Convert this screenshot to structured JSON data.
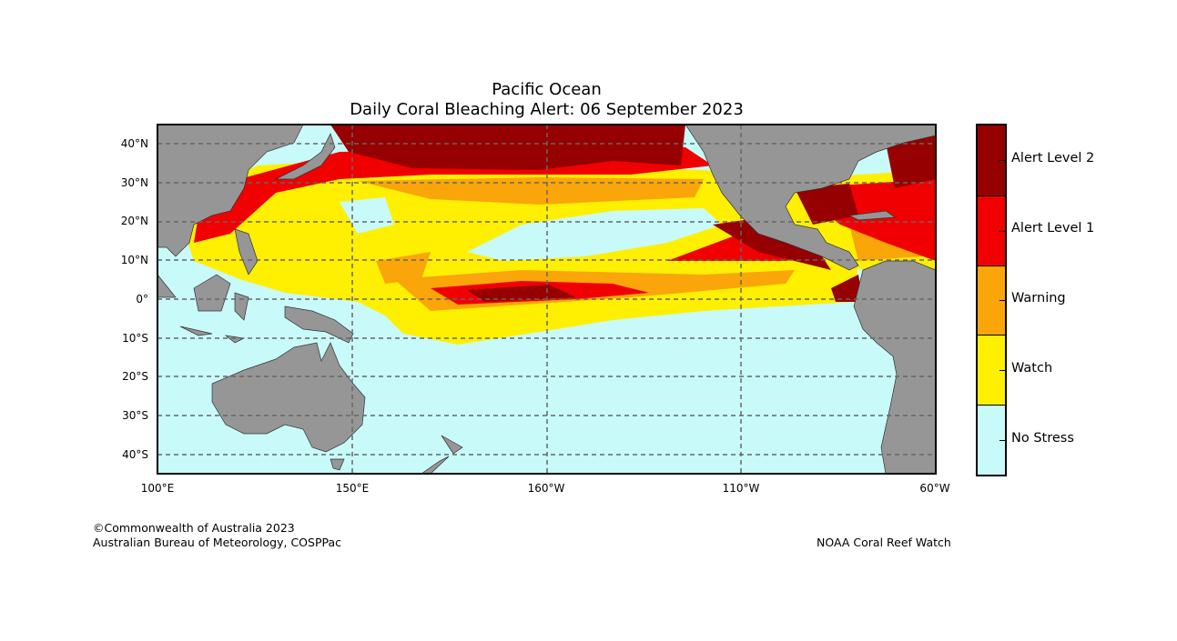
{
  "title": {
    "line1": "Pacific Ocean",
    "line2": "Daily Coral Bleaching Alert: 06 September 2023"
  },
  "y_ticks": [
    "40°N",
    "30°N",
    "20°N",
    "10°N",
    "0°",
    "10°S",
    "20°S",
    "30°S",
    "40°S"
  ],
  "x_ticks": [
    "100°E",
    "150°E",
    "160°W",
    "110°W",
    "60°W"
  ],
  "legend": [
    {
      "label": "Alert Level 2",
      "color": "#960000"
    },
    {
      "label": "Alert Level 1",
      "color": "#f00000"
    },
    {
      "label": "Warning",
      "color": "#faa50a"
    },
    {
      "label": "Watch",
      "color": "#ffef00"
    },
    {
      "label": "No Stress",
      "color": "#c8fafa"
    }
  ],
  "colors": {
    "land": "#969696",
    "ocean": "#c8fafa"
  },
  "footer": {
    "copyright": "©Commonwealth of Australia 2023",
    "agency": "Australian Bureau of Meteorology, COSPPac",
    "credit": "NOAA Coral Reef Watch"
  }
}
